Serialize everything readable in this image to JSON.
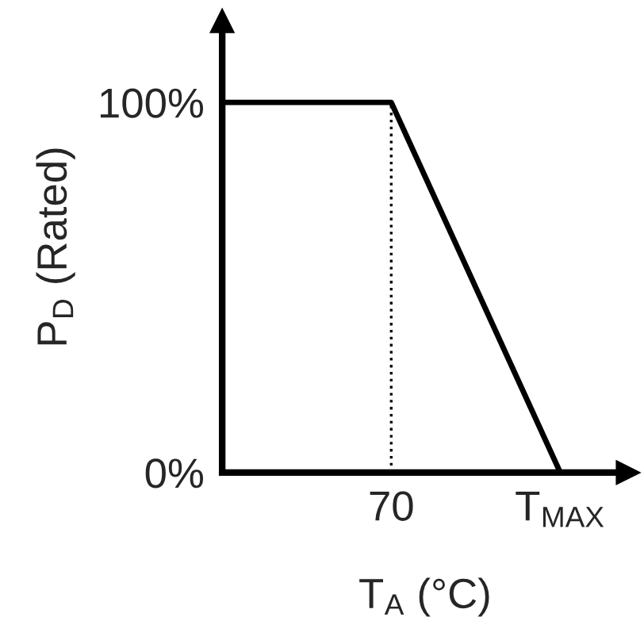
{
  "chart_data": {
    "type": "line",
    "xlabel": "T$_{A}$ (°C)",
    "ylabel": "P$_{D}$ (Rated)",
    "categories": [
      null,
      "70",
      "T$_{MAX}$"
    ],
    "series": [
      {
        "color": "#000000",
        "values": [
          100,
          100,
          0
        ]
      }
    ],
    "ylim": [
      0,
      122
    ],
    "yticks": [
      {
        "value": 0,
        "label": "0%"
      },
      {
        "value": 100,
        "label": "100%"
      }
    ],
    "ref_lines": [
      {
        "axis": "x",
        "value": "70",
        "color": "#000000",
        "line_style": "dotted"
      }
    ],
    "grid": false,
    "legend": false,
    "marker": "none",
    "line_style": "solid"
  }
}
